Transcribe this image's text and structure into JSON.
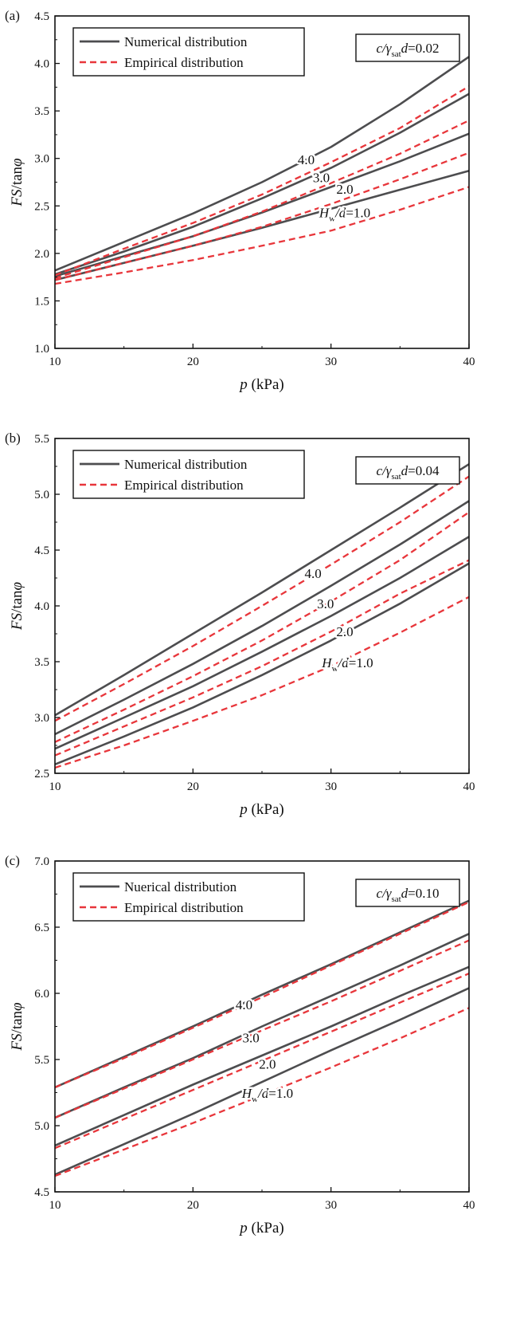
{
  "colors": {
    "numerical": "#4d4d4f",
    "empirical": "#e8363b",
    "axis": "#111111"
  },
  "chart_data": [
    {
      "type": "line",
      "panel_label": "(a)",
      "xlabel_italic": "p",
      "xlabel_unit": " (kPa)",
      "ylabel_italic": "FS",
      "ylabel_mid": "/tan",
      "ylabel_phi": "φ",
      "xlim": [
        10,
        40
      ],
      "ylim": [
        1.0,
        4.5
      ],
      "xticks": [
        10,
        20,
        30,
        40
      ],
      "xtick_labels": [
        "10",
        "20",
        "30",
        "40"
      ],
      "yticks": [
        1.0,
        1.5,
        2.0,
        2.5,
        3.0,
        3.5,
        4.0,
        4.5
      ],
      "ytick_labels": [
        "1.0",
        "1.5",
        "2.0",
        "2.5",
        "3.0",
        "3.5",
        "4.0",
        "4.5"
      ],
      "legend": [
        "Numerical distribution",
        "Empirical distribution"
      ],
      "param_c": "c",
      "param_gamma": "/γ",
      "param_sub": "sat",
      "param_d": "d",
      "param_value": "=0.02",
      "x": [
        10,
        15,
        20,
        25,
        30,
        35,
        40
      ],
      "series": [
        {
          "name": "Numerical H_w/d=4.0",
          "kind": "numerical",
          "values": [
            1.82,
            2.12,
            2.42,
            2.75,
            3.12,
            3.57,
            4.07
          ]
        },
        {
          "name": "Numerical H_w/d=3.0",
          "kind": "numerical",
          "values": [
            1.78,
            2.02,
            2.28,
            2.58,
            2.9,
            3.27,
            3.68
          ]
        },
        {
          "name": "Numerical H_w/d=2.0",
          "kind": "numerical",
          "values": [
            1.76,
            1.97,
            2.18,
            2.43,
            2.7,
            2.97,
            3.26
          ]
        },
        {
          "name": "Numerical H_w/d=1.0",
          "kind": "numerical",
          "values": [
            1.72,
            1.9,
            2.08,
            2.27,
            2.47,
            2.67,
            2.87
          ]
        },
        {
          "name": "Empirical H_w/d=4.0",
          "kind": "empirical",
          "values": [
            1.77,
            2.05,
            2.32,
            2.62,
            2.96,
            3.32,
            3.76
          ]
        },
        {
          "name": "Empirical H_w/d=3.0",
          "kind": "empirical",
          "values": [
            1.74,
            1.96,
            2.18,
            2.44,
            2.74,
            3.05,
            3.4
          ]
        },
        {
          "name": "Empirical H_w/d=2.0",
          "kind": "empirical",
          "values": [
            1.72,
            1.9,
            2.08,
            2.28,
            2.52,
            2.78,
            3.06
          ]
        },
        {
          "name": "Empirical H_w/d=1.0",
          "kind": "empirical",
          "values": [
            1.68,
            1.8,
            1.93,
            2.08,
            2.24,
            2.46,
            2.7
          ]
        }
      ],
      "annotations": [
        {
          "text": "4.0",
          "x": 28.2,
          "y": 2.94
        },
        {
          "text": "3.0",
          "x": 29.3,
          "y": 2.75
        },
        {
          "text": "2.0",
          "x": 31.0,
          "y": 2.63
        },
        {
          "hw": true,
          "x": 31.0,
          "y": 2.38
        }
      ],
      "hw_H": "H",
      "hw_sub": "w",
      "hw_d": "/d",
      "hw_value": "=1.0"
    },
    {
      "type": "line",
      "panel_label": "(b)",
      "xlabel_italic": "p",
      "xlabel_unit": " (kPa)",
      "ylabel_italic": "FS",
      "ylabel_mid": "/tan",
      "ylabel_phi": "φ",
      "xlim": [
        10,
        40
      ],
      "ylim": [
        2.5,
        5.5
      ],
      "xticks": [
        10,
        20,
        30,
        40
      ],
      "xtick_labels": [
        "10",
        "20",
        "30",
        "40"
      ],
      "yticks": [
        2.5,
        3.0,
        3.5,
        4.0,
        4.5,
        5.0,
        5.5
      ],
      "ytick_labels": [
        "2.5",
        "3.0",
        "3.5",
        "4.0",
        "4.5",
        "5.0",
        "5.5"
      ],
      "legend": [
        "Numerical distribution",
        "Empirical distribution"
      ],
      "param_c": "c",
      "param_gamma": "/γ",
      "param_sub": "sat",
      "param_d": "d",
      "param_value": "=0.04",
      "x": [
        10,
        15,
        20,
        25,
        30,
        35,
        40
      ],
      "series": [
        {
          "name": "Numerical H_w/d=4.0",
          "kind": "numerical",
          "values": [
            3.02,
            3.38,
            3.75,
            4.12,
            4.5,
            4.88,
            5.27
          ]
        },
        {
          "name": "Numerical H_w/d=3.0",
          "kind": "numerical",
          "values": [
            2.85,
            3.16,
            3.48,
            3.82,
            4.18,
            4.55,
            4.94
          ]
        },
        {
          "name": "Numerical H_w/d=2.0",
          "kind": "numerical",
          "values": [
            2.72,
            3.0,
            3.28,
            3.59,
            3.91,
            4.25,
            4.62
          ]
        },
        {
          "name": "Numerical H_w/d=1.0",
          "kind": "numerical",
          "values": [
            2.58,
            2.83,
            3.09,
            3.38,
            3.69,
            4.02,
            4.38
          ]
        },
        {
          "name": "Empirical H_w/d=4.0",
          "kind": "empirical",
          "values": [
            2.97,
            3.3,
            3.64,
            4.0,
            4.37,
            4.75,
            5.16
          ]
        },
        {
          "name": "Empirical H_w/d=3.0",
          "kind": "empirical",
          "values": [
            2.78,
            3.07,
            3.37,
            3.69,
            4.04,
            4.41,
            4.84
          ]
        },
        {
          "name": "Empirical H_w/d=2.0",
          "kind": "empirical",
          "values": [
            2.66,
            2.92,
            3.18,
            3.46,
            3.77,
            4.11,
            4.41
          ]
        },
        {
          "name": "Empirical H_w/d=1.0",
          "kind": "empirical",
          "values": [
            2.55,
            2.75,
            2.97,
            3.2,
            3.46,
            3.76,
            4.08
          ]
        }
      ],
      "annotations": [
        {
          "text": "4.0",
          "x": 28.7,
          "y": 4.25
        },
        {
          "text": "3.0",
          "x": 29.6,
          "y": 3.98
        },
        {
          "text": "2.0",
          "x": 31.0,
          "y": 3.73
        },
        {
          "hw": true,
          "x": 31.2,
          "y": 3.45
        }
      ],
      "hw_H": "H",
      "hw_sub": "w",
      "hw_d": "/d",
      "hw_value": "=1.0"
    },
    {
      "type": "line",
      "panel_label": "(c)",
      "xlabel_italic": "p",
      "xlabel_unit": " (kPa)",
      "ylabel_italic": "FS",
      "ylabel_mid": "/tan",
      "ylabel_phi": "φ",
      "xlim": [
        10,
        40
      ],
      "ylim": [
        4.5,
        7.0
      ],
      "xticks": [
        10,
        20,
        30,
        40
      ],
      "xtick_labels": [
        "10",
        "20",
        "30",
        "40"
      ],
      "yticks": [
        4.5,
        5.0,
        5.5,
        6.0,
        6.5,
        7.0
      ],
      "ytick_labels": [
        "4.5",
        "5.0",
        "5.5",
        "6.0",
        "6.5",
        "7.0"
      ],
      "legend": [
        "Nuerical distribution",
        "Empirical distribution"
      ],
      "param_c": "c",
      "param_gamma": "/γ",
      "param_sub": "sat",
      "param_d": "d",
      "param_value": "=0.10",
      "x": [
        10,
        15,
        20,
        25,
        30,
        35,
        40
      ],
      "series": [
        {
          "name": "Numerical H_w/d=4.0",
          "kind": "numerical",
          "values": [
            5.29,
            5.52,
            5.75,
            5.99,
            6.22,
            6.46,
            6.7
          ]
        },
        {
          "name": "Numerical H_w/d=3.0",
          "kind": "numerical",
          "values": [
            5.06,
            5.29,
            5.51,
            5.75,
            5.98,
            6.21,
            6.45
          ]
        },
        {
          "name": "Numerical H_w/d=2.0",
          "kind": "numerical",
          "values": [
            4.85,
            5.08,
            5.31,
            5.53,
            5.75,
            5.98,
            6.2
          ]
        },
        {
          "name": "Numerical H_w/d=1.0",
          "kind": "numerical",
          "values": [
            4.63,
            4.86,
            5.09,
            5.33,
            5.57,
            5.8,
            6.04
          ]
        },
        {
          "name": "Empirical H_w/d=4.0",
          "kind": "empirical",
          "values": [
            5.29,
            5.51,
            5.74,
            5.97,
            6.21,
            6.45,
            6.69
          ]
        },
        {
          "name": "Empirical H_w/d=3.0",
          "kind": "empirical",
          "values": [
            5.06,
            5.28,
            5.5,
            5.72,
            5.94,
            6.17,
            6.4
          ]
        },
        {
          "name": "Empirical H_w/d=2.0",
          "kind": "empirical",
          "values": [
            4.83,
            5.05,
            5.27,
            5.49,
            5.71,
            5.93,
            6.15
          ]
        },
        {
          "name": "Empirical H_w/d=1.0",
          "kind": "empirical",
          "values": [
            4.62,
            4.82,
            5.02,
            5.23,
            5.44,
            5.66,
            5.89
          ]
        }
      ],
      "annotations": [
        {
          "text": "4.0",
          "x": 23.7,
          "y": 5.88
        },
        {
          "text": "3.0",
          "x": 24.2,
          "y": 5.63
        },
        {
          "text": "2.0",
          "x": 25.4,
          "y": 5.43
        },
        {
          "hw": true,
          "x": 25.4,
          "y": 5.21
        }
      ],
      "hw_H": "H",
      "hw_sub": "w",
      "hw_d": "/d",
      "hw_value": "=1.0"
    }
  ]
}
